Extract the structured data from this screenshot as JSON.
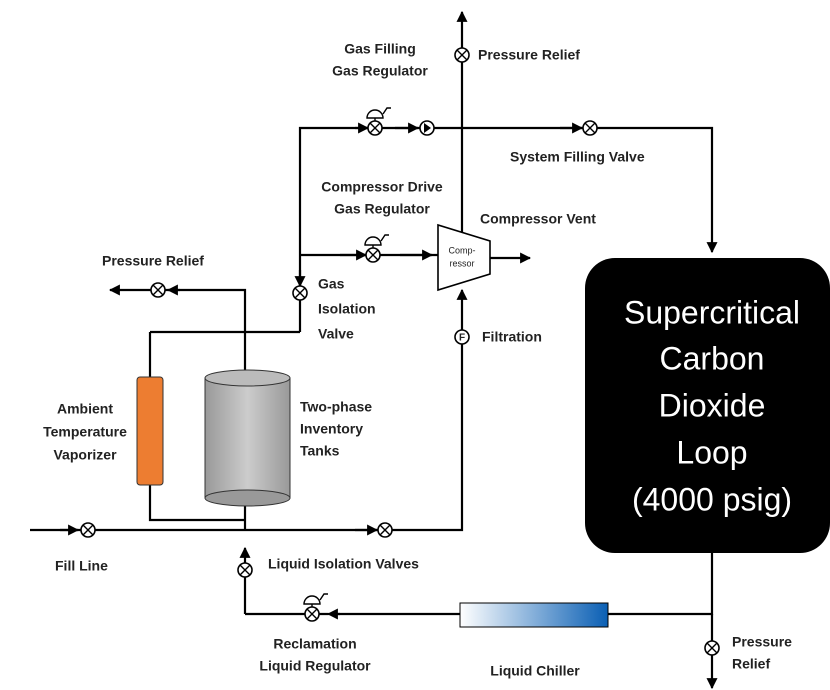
{
  "labels": {
    "gas_filling_regulator": [
      "Gas Filling",
      "Gas Regulator"
    ],
    "top_pressure_relief": "Pressure Relief",
    "system_filling_valve": "System Filling Valve",
    "compressor_drive_regulator": [
      "Compressor Drive",
      "Gas Regulator"
    ],
    "compressor_vent": "Compressor Vent",
    "compressor": [
      "Comp-",
      "ressor"
    ],
    "left_pressure_relief": "Pressure Relief",
    "gas_isolation_valve": [
      "Gas",
      "Isolation",
      "Valve"
    ],
    "filtration": "Filtration",
    "filter_symbol": "F",
    "vaporizer": [
      "Ambient",
      "Temperature",
      "Vaporizer"
    ],
    "tanks": [
      "Two-phase",
      "Inventory",
      "Tanks"
    ],
    "loop": [
      "Supercritical",
      "Carbon",
      "Dioxide",
      "Loop",
      "(4000 psig)"
    ],
    "fill_line": "Fill Line",
    "liquid_isolation_valves": "Liquid Isolation Valves",
    "reclamation_regulator": [
      "Reclamation",
      "Liquid Regulator"
    ],
    "liquid_chiller": "Liquid Chiller",
    "bottom_pressure_relief": [
      "Pressure",
      "Relief"
    ]
  }
}
